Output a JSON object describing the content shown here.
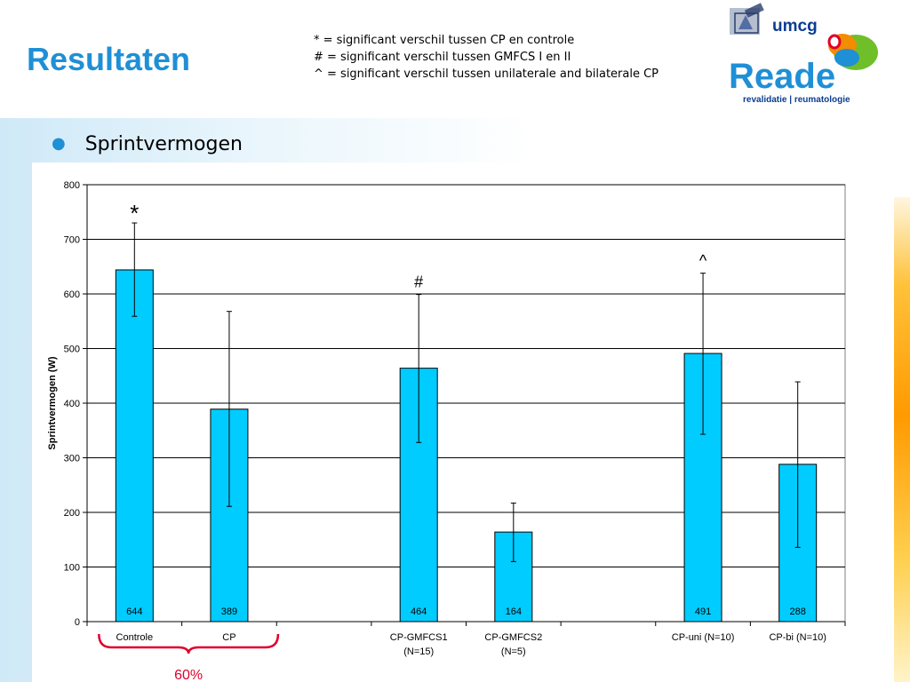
{
  "slide": {
    "title": "Resultaten",
    "bullet": "Sprintvermogen"
  },
  "legend": [
    "* = significant verschil tussen CP en controle",
    "# = significant verschil tussen GMFCS I en II",
    "^ = significant verschil tussen unilaterale and bilaterale CP"
  ],
  "logo": {
    "umcg": "umcg",
    "reade": "Reade",
    "tagline": "revalidatie | reumatologie"
  },
  "colors": {
    "title": "#1f8fd6",
    "bar": "#00ccff",
    "brace": "#e0002a",
    "reade": "#1f8fd6",
    "umcg": "#0b3d91"
  },
  "chart_data": {
    "type": "bar",
    "ylabel": "Sprintvermogen (W)",
    "ylim": [
      0,
      800
    ],
    "yticks": [
      0,
      100,
      200,
      300,
      400,
      500,
      600,
      700,
      800
    ],
    "grid": true,
    "categories": [
      [
        "Controle"
      ],
      [
        "CP"
      ],
      [],
      [
        "CP-GMFCS1",
        "(N=15)"
      ],
      [
        "CP-GMFCS2",
        "(N=5)"
      ],
      [],
      [
        "CP-uni (N=10)"
      ],
      [
        "CP-bi (N=10)"
      ]
    ],
    "values": [
      644,
      389,
      null,
      464,
      164,
      null,
      491,
      288
    ],
    "value_labels": [
      "644",
      "389",
      "",
      "464",
      "164",
      "",
      "491",
      "288"
    ],
    "error_low": [
      559,
      211,
      null,
      328,
      110,
      null,
      343,
      136
    ],
    "error_high": [
      730,
      568,
      null,
      599,
      217,
      null,
      638,
      439
    ],
    "markers": [
      "*",
      "",
      "",
      "#",
      "",
      "",
      "^",
      ""
    ],
    "brace": {
      "from": 0,
      "to": 1,
      "label": "60%"
    }
  }
}
